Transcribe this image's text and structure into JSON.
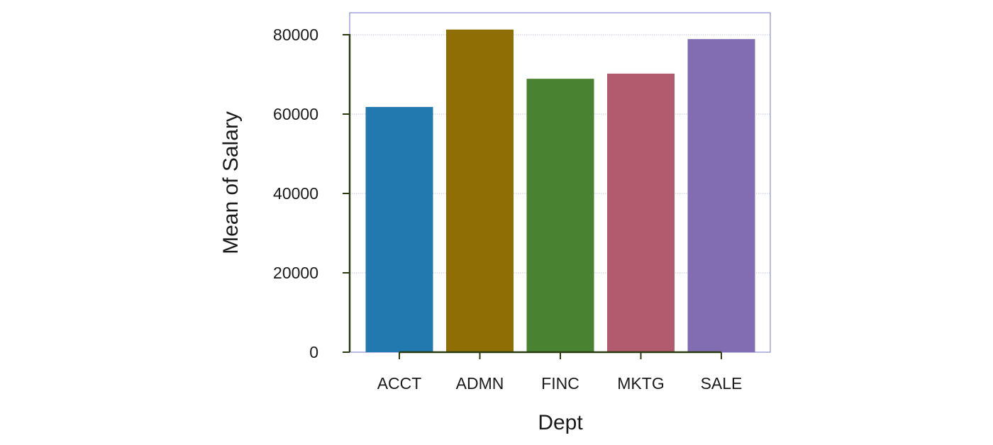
{
  "chart_data": {
    "type": "bar",
    "title": "",
    "xlabel": "Dept",
    "ylabel": "Mean of Salary",
    "categories": [
      "ACCT",
      "ADMN",
      "FINC",
      "MKTG",
      "SALE"
    ],
    "values": [
      61800,
      81300,
      68900,
      70200,
      78900
    ],
    "colors": [
      "#2279b0",
      "#8e6e05",
      "#498230",
      "#b25b6f",
      "#826db2"
    ],
    "ylim": [
      0,
      85000
    ],
    "yticks": [
      0,
      20000,
      40000,
      60000,
      80000
    ],
    "ytick_labels": [
      "0",
      "20000",
      "40000",
      "60000",
      "80000"
    ],
    "grid": true,
    "legend": "none"
  }
}
